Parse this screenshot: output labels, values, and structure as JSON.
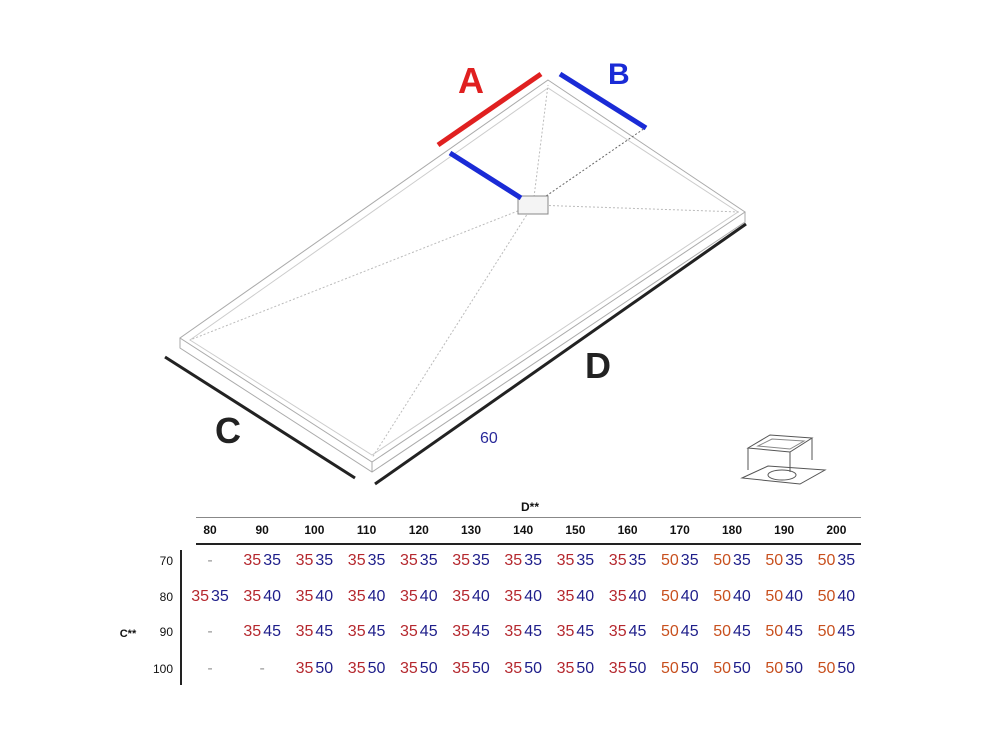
{
  "labels": {
    "a": "A",
    "b": "B",
    "c": "C",
    "d": "D",
    "sixty": "60"
  },
  "colors": {
    "a": "#e02020",
    "b": "#1a2bd6",
    "left_value": "#b5282e",
    "left_value_50": "#c8501e",
    "right_value": "#1e1e8a"
  },
  "table": {
    "d_title": "D**",
    "c_title": "C**",
    "columns": [
      "80",
      "90",
      "100",
      "110",
      "120",
      "130",
      "140",
      "150",
      "160",
      "170",
      "180",
      "190",
      "200"
    ],
    "rows": [
      {
        "c": "70",
        "cells": [
          null,
          [
            "35",
            "35"
          ],
          [
            "35",
            "35"
          ],
          [
            "35",
            "35"
          ],
          [
            "35",
            "35"
          ],
          [
            "35",
            "35"
          ],
          [
            "35",
            "35"
          ],
          [
            "35",
            "35"
          ],
          [
            "35",
            "35"
          ],
          [
            "50",
            "35"
          ],
          [
            "50",
            "35"
          ],
          [
            "50",
            "35"
          ],
          [
            "50",
            "35"
          ]
        ]
      },
      {
        "c": "80",
        "cells": [
          [
            "35",
            "35"
          ],
          [
            "35",
            "40"
          ],
          [
            "35",
            "40"
          ],
          [
            "35",
            "40"
          ],
          [
            "35",
            "40"
          ],
          [
            "35",
            "40"
          ],
          [
            "35",
            "40"
          ],
          [
            "35",
            "40"
          ],
          [
            "35",
            "40"
          ],
          [
            "50",
            "40"
          ],
          [
            "50",
            "40"
          ],
          [
            "50",
            "40"
          ],
          [
            "50",
            "40"
          ]
        ]
      },
      {
        "c": "90",
        "cells": [
          null,
          [
            "35",
            "45"
          ],
          [
            "35",
            "45"
          ],
          [
            "35",
            "45"
          ],
          [
            "35",
            "45"
          ],
          [
            "35",
            "45"
          ],
          [
            "35",
            "45"
          ],
          [
            "35",
            "45"
          ],
          [
            "35",
            "45"
          ],
          [
            "50",
            "45"
          ],
          [
            "50",
            "45"
          ],
          [
            "50",
            "45"
          ],
          [
            "50",
            "45"
          ]
        ]
      },
      {
        "c": "100",
        "cells": [
          null,
          null,
          [
            "35",
            "50"
          ],
          [
            "35",
            "50"
          ],
          [
            "35",
            "50"
          ],
          [
            "35",
            "50"
          ],
          [
            "35",
            "50"
          ],
          [
            "35",
            "50"
          ],
          [
            "35",
            "50"
          ],
          [
            "50",
            "50"
          ],
          [
            "50",
            "50"
          ],
          [
            "50",
            "50"
          ],
          [
            "50",
            "50"
          ]
        ]
      }
    ],
    "empty": "-"
  }
}
